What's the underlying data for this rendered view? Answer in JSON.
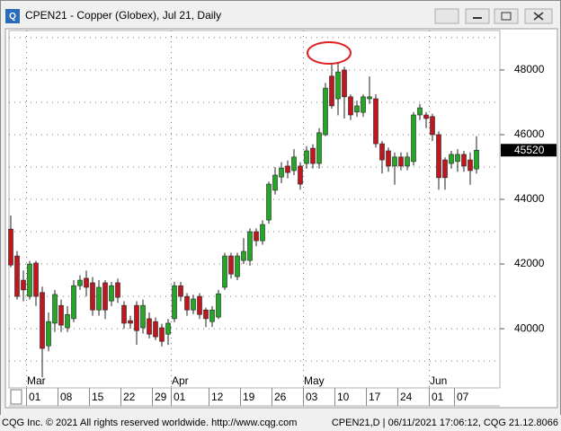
{
  "chart_data": {
    "type": "candlestick",
    "title": "CPEN21 - Copper (Globex), Jul 21, Daily",
    "footer_left": "CQG Inc. © 2021 All rights reserved worldwide. http://www.cqg.com",
    "footer_right": "CPEN21,D | 06/11/2021 17:06:12, CQG 21.12.8066",
    "categories": [
      null,
      null,
      null,
      "01",
      null,
      null,
      null,
      null,
      "08",
      null,
      null,
      null,
      null,
      "15",
      null,
      null,
      null,
      null,
      "22",
      null,
      null,
      null,
      null,
      "29",
      null,
      null,
      "01",
      null,
      null,
      null,
      null,
      null,
      "12",
      null,
      null,
      null,
      null,
      "19",
      null,
      null,
      null,
      null,
      "26",
      null,
      null,
      null,
      null,
      "03",
      null,
      null,
      null,
      null,
      "10",
      null,
      null,
      null,
      null,
      "17",
      null,
      null,
      null,
      null,
      "24",
      null,
      null,
      null,
      null,
      "01",
      null,
      null,
      null,
      "07",
      null,
      null,
      null
    ],
    "months": [
      null,
      null,
      null,
      "Mar",
      null,
      null,
      null,
      null,
      null,
      null,
      null,
      null,
      null,
      null,
      null,
      null,
      null,
      null,
      null,
      null,
      null,
      null,
      null,
      null,
      null,
      null,
      "Apr",
      null,
      null,
      null,
      null,
      null,
      null,
      null,
      null,
      null,
      null,
      null,
      null,
      null,
      null,
      null,
      null,
      null,
      null,
      null,
      null,
      "May",
      null,
      null,
      null,
      null,
      null,
      null,
      null,
      null,
      null,
      null,
      null,
      null,
      null,
      null,
      null,
      null,
      null,
      null,
      null,
      "Jun",
      null,
      null,
      null,
      null,
      null,
      null,
      null
    ],
    "open": [
      43080,
      42250,
      41500,
      41000,
      42030,
      41120,
      39470,
      40170,
      40720,
      40030,
      40310,
      41330,
      41560,
      41420,
      40580,
      41420,
      40860,
      41420,
      40720,
      40250,
      40720,
      40030,
      40310,
      40220,
      40030,
      39830,
      40310,
      41330,
      41000,
      40580,
      41000,
      40580,
      40220,
      40360,
      41280,
      42250,
      41610,
      42110,
      42110,
      43000,
      42720,
      43360,
      44280,
      44690,
      45030,
      44890,
      45030,
      45110,
      45580,
      45110,
      46000,
      47810,
      47110,
      48000,
      47170,
      46700,
      46690,
      47110,
      47110,
      45720,
      45500,
      45030,
      45310,
      45030,
      45170,
      46610,
      46610,
      46560,
      46000,
      45220,
      45110,
      45170,
      45390,
      45220,
      44940
    ],
    "high": [
      43500,
      42400,
      41800,
      42100,
      42100,
      41300,
      40500,
      41200,
      40900,
      40700,
      41500,
      41650,
      41800,
      41600,
      41500,
      41500,
      41450,
      41550,
      40850,
      40400,
      40850,
      40900,
      40500,
      40350,
      40150,
      40300,
      41450,
      41450,
      41100,
      41050,
      41100,
      40650,
      40700,
      41200,
      42350,
      42350,
      42350,
      42800,
      43100,
      43100,
      43350,
      44550,
      45000,
      45150,
      45200,
      45550,
      45150,
      45650,
      45700,
      46200,
      47600,
      48220,
      48250,
      48100,
      47250,
      47050,
      47250,
      47800,
      47250,
      45800,
      45600,
      45450,
      45450,
      45450,
      46700,
      46950,
      46700,
      46650,
      46100,
      45300,
      45500,
      45550,
      45500,
      45450,
      45950
    ],
    "low": [
      41900,
      40900,
      40850,
      40900,
      40700,
      38500,
      39300,
      39900,
      39900,
      39900,
      40200,
      41200,
      41000,
      40400,
      40400,
      40300,
      40700,
      40800,
      40000,
      40000,
      39500,
      39850,
      39700,
      39650,
      39450,
      39500,
      40200,
      40850,
      40400,
      40450,
      40300,
      40050,
      40050,
      40300,
      41200,
      41550,
      41500,
      42000,
      41950,
      42550,
      42600,
      43250,
      44150,
      44500,
      44650,
      44750,
      44300,
      44950,
      44950,
      44950,
      45950,
      46800,
      46600,
      46500,
      46450,
      46550,
      46550,
      46950,
      45600,
      44800,
      44850,
      44450,
      44900,
      44900,
      45050,
      46450,
      46200,
      45800,
      44300,
      44300,
      44950,
      44850,
      44850,
      44450,
      44800
    ],
    "close": [
      41970,
      41000,
      41200,
      42000,
      41000,
      39390,
      40220,
      41060,
      40110,
      40440,
      41330,
      41500,
      41280,
      40580,
      41280,
      40580,
      41330,
      40970,
      40170,
      40170,
      39940,
      40720,
      39830,
      39750,
      39610,
      40170,
      41330,
      41000,
      40580,
      40920,
      40440,
      40310,
      40580,
      41080,
      42250,
      41690,
      42250,
      42390,
      43000,
      42720,
      43220,
      44470,
      44750,
      44970,
      44830,
      45310,
      44470,
      45500,
      45110,
      46060,
      47440,
      46890,
      47940,
      47170,
      46610,
      46890,
      47170,
      47170,
      45720,
      45220,
      45030,
      45310,
      45030,
      45310,
      46610,
      46830,
      46500,
      46000,
      44670,
      44670,
      45390,
      45390,
      45030,
      44890,
      45520
    ],
    "up_color": "#26a626",
    "down_color": "#c0161e",
    "last_price": 45520,
    "ylim": [
      38170,
      49220
    ],
    "yticks": [
      40000,
      42000,
      44000,
      46000,
      48000
    ],
    "grid_yticks": [
      39000,
      40000,
      41000,
      42000,
      43000,
      44000,
      45000,
      46000,
      47000,
      48000,
      49000
    ],
    "grid": true
  }
}
